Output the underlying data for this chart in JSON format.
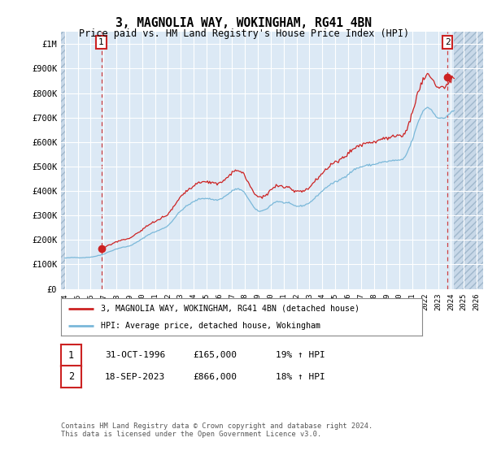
{
  "title": "3, MAGNOLIA WAY, WOKINGHAM, RG41 4BN",
  "subtitle": "Price paid vs. HM Land Registry's House Price Index (HPI)",
  "ylim": [
    0,
    1050000
  ],
  "yticks": [
    0,
    100000,
    200000,
    300000,
    400000,
    500000,
    600000,
    700000,
    800000,
    900000,
    1000000
  ],
  "ytick_labels": [
    "£0",
    "£100K",
    "£200K",
    "£300K",
    "£400K",
    "£500K",
    "£600K",
    "£700K",
    "£800K",
    "£900K",
    "£1M"
  ],
  "xlim_start": 1993.7,
  "xlim_end": 2026.5,
  "xticks": [
    1994,
    1995,
    1996,
    1997,
    1998,
    1999,
    2000,
    2001,
    2002,
    2003,
    2004,
    2005,
    2006,
    2007,
    2008,
    2009,
    2010,
    2011,
    2012,
    2013,
    2014,
    2015,
    2016,
    2017,
    2018,
    2019,
    2020,
    2021,
    2022,
    2023,
    2024,
    2025,
    2026
  ],
  "hpi_line_color": "#7ab8d9",
  "price_line_color": "#cc2222",
  "marker_color": "#cc2222",
  "annotation_box_edgecolor": "#cc2222",
  "background_color": "#dce9f5",
  "hatch_bg_color": "#c8d8e8",
  "grid_color": "#ffffff",
  "transaction1_x": 1996.83,
  "transaction1_y": 165000,
  "transaction1_label": "1",
  "transaction2_x": 2023.72,
  "transaction2_y": 866000,
  "transaction2_label": "2",
  "legend_line1": "3, MAGNOLIA WAY, WOKINGHAM, RG41 4BN (detached house)",
  "legend_line2": "HPI: Average price, detached house, Wokingham",
  "table_row1": [
    "1",
    "31-OCT-1996",
    "£165,000",
    "19% ↑ HPI"
  ],
  "table_row2": [
    "2",
    "18-SEP-2023",
    "£866,000",
    "18% ↑ HPI"
  ],
  "footnote": "Contains HM Land Registry data © Crown copyright and database right 2024.\nThis data is licensed under the Open Government Licence v3.0.",
  "hpi_data_quarterly": {
    "years": [
      1994.0,
      1994.25,
      1994.5,
      1994.75,
      1995.0,
      1995.25,
      1995.5,
      1995.75,
      1996.0,
      1996.25,
      1996.5,
      1996.75,
      1997.0,
      1997.25,
      1997.5,
      1997.75,
      1998.0,
      1998.25,
      1998.5,
      1998.75,
      1999.0,
      1999.25,
      1999.5,
      1999.75,
      2000.0,
      2000.25,
      2000.5,
      2000.75,
      2001.0,
      2001.25,
      2001.5,
      2001.75,
      2002.0,
      2002.25,
      2002.5,
      2002.75,
      2003.0,
      2003.25,
      2003.5,
      2003.75,
      2004.0,
      2004.25,
      2004.5,
      2004.75,
      2005.0,
      2005.25,
      2005.5,
      2005.75,
      2006.0,
      2006.25,
      2006.5,
      2006.75,
      2007.0,
      2007.25,
      2007.5,
      2007.75,
      2008.0,
      2008.25,
      2008.5,
      2008.75,
      2009.0,
      2009.25,
      2009.5,
      2009.75,
      2010.0,
      2010.25,
      2010.5,
      2010.75,
      2011.0,
      2011.25,
      2011.5,
      2011.75,
      2012.0,
      2012.25,
      2012.5,
      2012.75,
      2013.0,
      2013.25,
      2013.5,
      2013.75,
      2014.0,
      2014.25,
      2014.5,
      2014.75,
      2015.0,
      2015.25,
      2015.5,
      2015.75,
      2016.0,
      2016.25,
      2016.5,
      2016.75,
      2017.0,
      2017.25,
      2017.5,
      2017.75,
      2018.0,
      2018.25,
      2018.5,
      2018.75,
      2019.0,
      2019.25,
      2019.5,
      2019.75,
      2020.0,
      2020.25,
      2020.5,
      2020.75,
      2021.0,
      2021.25,
      2021.5,
      2021.75,
      2022.0,
      2022.25,
      2022.5,
      2022.75,
      2023.0,
      2023.25,
      2023.5,
      2023.75,
      2024.0,
      2024.25
    ],
    "values": [
      126000,
      127000,
      128000,
      128500,
      128000,
      127500,
      128000,
      129000,
      130000,
      132000,
      135000,
      138000,
      142000,
      148000,
      153000,
      158000,
      163000,
      167000,
      170000,
      172000,
      175000,
      181000,
      188000,
      196000,
      204000,
      213000,
      222000,
      228000,
      233000,
      238000,
      244000,
      250000,
      258000,
      272000,
      288000,
      305000,
      318000,
      330000,
      340000,
      348000,
      356000,
      363000,
      368000,
      370000,
      370000,
      368000,
      365000,
      363000,
      365000,
      372000,
      380000,
      390000,
      400000,
      408000,
      408000,
      402000,
      390000,
      370000,
      348000,
      328000,
      318000,
      318000,
      322000,
      330000,
      342000,
      352000,
      358000,
      355000,
      352000,
      352000,
      348000,
      342000,
      338000,
      338000,
      340000,
      345000,
      352000,
      362000,
      375000,
      388000,
      400000,
      412000,
      422000,
      430000,
      436000,
      442000,
      450000,
      458000,
      468000,
      478000,
      488000,
      494000,
      498000,
      502000,
      505000,
      506000,
      508000,
      512000,
      516000,
      518000,
      520000,
      522000,
      524000,
      526000,
      524000,
      528000,
      545000,
      575000,
      608000,
      648000,
      688000,
      718000,
      738000,
      742000,
      730000,
      712000,
      700000,
      695000,
      698000,
      710000,
      720000,
      728000
    ]
  }
}
